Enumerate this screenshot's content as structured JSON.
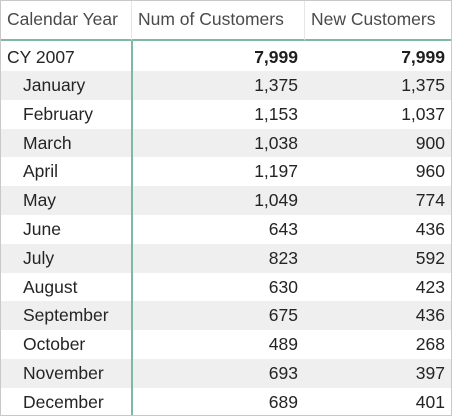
{
  "table": {
    "columns": [
      "Calendar Year",
      "Num of Customers",
      "New Customers"
    ],
    "total": {
      "label": "CY 2007",
      "num": "7,999",
      "new": "7,999"
    },
    "rows": [
      {
        "label": "January",
        "num": "1,375",
        "new": "1,375"
      },
      {
        "label": "February",
        "num": "1,153",
        "new": "1,037"
      },
      {
        "label": "March",
        "num": "1,038",
        "new": "900"
      },
      {
        "label": "April",
        "num": "1,197",
        "new": "960"
      },
      {
        "label": "May",
        "num": "1,049",
        "new": "774"
      },
      {
        "label": "June",
        "num": "643",
        "new": "436"
      },
      {
        "label": "July",
        "num": "823",
        "new": "592"
      },
      {
        "label": "August",
        "num": "630",
        "new": "423"
      },
      {
        "label": "September",
        "num": "675",
        "new": "436"
      },
      {
        "label": "October",
        "num": "489",
        "new": "268"
      },
      {
        "label": "November",
        "num": "693",
        "new": "397"
      },
      {
        "label": "December",
        "num": "689",
        "new": "401"
      }
    ]
  },
  "colors": {
    "accent_line": "#7fb9a3",
    "shaded_row": "#efefef",
    "border": "#c8c8c8"
  }
}
